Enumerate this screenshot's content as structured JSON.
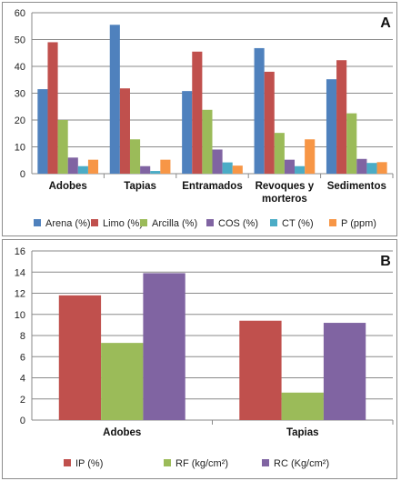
{
  "chart_data": [
    {
      "type": "bar",
      "panel_tag": "A",
      "categories": [
        "Adobes",
        "Tapias",
        "Entramados",
        "Revoques y morteros",
        "Sedimentos"
      ],
      "category_lines": [
        [
          "Adobes"
        ],
        [
          "Tapias"
        ],
        [
          "Entramados"
        ],
        [
          "Revoques y",
          "morteros"
        ],
        [
          "Sedimentos"
        ]
      ],
      "ylim": [
        0,
        60
      ],
      "yticks": [
        0,
        10,
        20,
        30,
        40,
        50,
        60
      ],
      "grid": true,
      "legend_position": "bottom",
      "series": [
        {
          "name": "Arena (%)",
          "color": "#4f81bd",
          "values": [
            31.5,
            55.5,
            30.8,
            46.8,
            35.2
          ]
        },
        {
          "name": "Limo (%)",
          "color": "#c0504d",
          "values": [
            49.0,
            31.8,
            45.5,
            38.0,
            42.3
          ]
        },
        {
          "name": "Arcilla (%)",
          "color": "#9bbb59",
          "values": [
            20.0,
            12.8,
            23.8,
            15.2,
            22.5
          ]
        },
        {
          "name": "COS (%)",
          "color": "#8064a2",
          "values": [
            6.0,
            2.8,
            9.0,
            5.2,
            5.5
          ]
        },
        {
          "name": "CT (%)",
          "color": "#4bacc6",
          "values": [
            2.8,
            1.0,
            4.2,
            2.8,
            4.0
          ]
        },
        {
          "name": "P (ppm)",
          "color": "#f79646",
          "values": [
            5.2,
            5.2,
            3.0,
            12.8,
            4.3
          ]
        }
      ]
    },
    {
      "type": "bar",
      "panel_tag": "B",
      "categories": [
        "Adobes",
        "Tapias"
      ],
      "category_lines": [
        [
          "Adobes"
        ],
        [
          "Tapias"
        ]
      ],
      "ylim": [
        0,
        16
      ],
      "yticks": [
        0,
        2,
        4,
        6,
        8,
        10,
        12,
        14,
        16
      ],
      "grid": true,
      "legend_position": "bottom",
      "series": [
        {
          "name": "IP (%)",
          "color": "#c0504d",
          "values": [
            11.8,
            9.4
          ]
        },
        {
          "name": "RF (kg/cm²)",
          "color": "#9bbb59",
          "values": [
            7.3,
            2.6
          ]
        },
        {
          "name": "RC (Kg/cm²)",
          "color": "#8064a2",
          "values": [
            13.9,
            9.2
          ]
        }
      ]
    }
  ]
}
